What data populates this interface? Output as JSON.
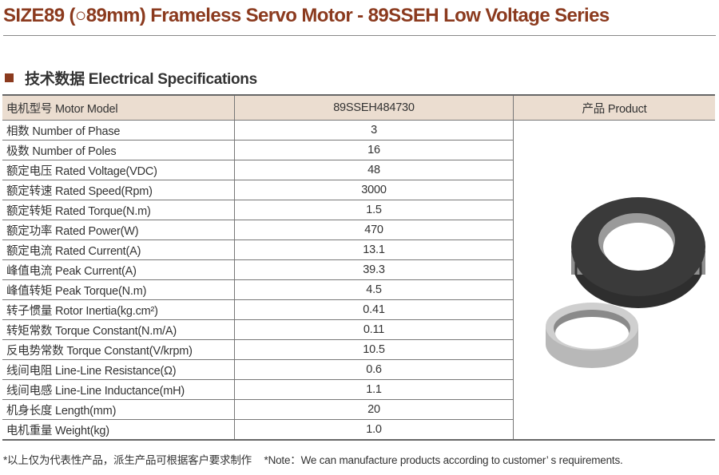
{
  "title": "SIZE89 (○89mm) Frameless Servo Motor - 89SSEH Low Voltage Series",
  "section_title": "技术数据 Electrical Specifications",
  "table": {
    "header": [
      "电机型号 Motor Model",
      "89SSEH484730",
      "产品 Product"
    ],
    "rows": [
      [
        "相数 Number of Phase",
        "3"
      ],
      [
        "极数 Number of Poles",
        "16"
      ],
      [
        "额定电压 Rated Voltage(VDC)",
        "48"
      ],
      [
        "额定转速 Rated Speed(Rpm)",
        "3000"
      ],
      [
        "额定转矩 Rated Torque(N.m)",
        "1.5"
      ],
      [
        "额定功率 Rated Power(W)",
        "470"
      ],
      [
        "额定电流 Rated Current(A)",
        "13.1"
      ],
      [
        "峰值电流 Peak Current(A)",
        "39.3"
      ],
      [
        "峰值转矩 Peak Torque(N.m)",
        "4.5"
      ],
      [
        "转子惯量 Rotor Inertia(kg.cm²)",
        "0.41"
      ],
      [
        "转矩常数 Torque Constant(N.m/A)",
        "0.11"
      ],
      [
        "反电势常数 Torque Constant(V/krpm)",
        "10.5"
      ],
      [
        "线间电阻 Line-Line Resistance(Ω)",
        "0.6"
      ],
      [
        "线间电感 Line-Line Inductance(mH)",
        "1.1"
      ],
      [
        "机身长度 Length(mm)",
        "20"
      ],
      [
        "电机重量 Weight(kg)",
        "1.0"
      ]
    ]
  },
  "notes": [
    "*以上仅为代表性产品，派生产品可根据客户要求制作",
    "*Note：We can manufacture products according to customer’ s requirements."
  ],
  "colors": {
    "accent": "#8b3a1e",
    "header_bg": "#ebddd0"
  }
}
